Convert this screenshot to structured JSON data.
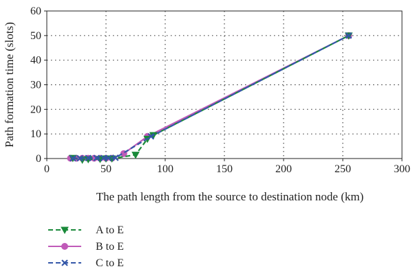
{
  "chart_data": {
    "type": "line",
    "title": "",
    "xlabel": "The path length from the source to destination node (km)",
    "ylabel": "Path formation time (slots)",
    "xlim": [
      0,
      300
    ],
    "ylim": [
      0,
      60
    ],
    "xticks": [
      0,
      50,
      100,
      150,
      200,
      250,
      300
    ],
    "yticks": [
      0,
      10,
      20,
      30,
      40,
      50,
      60
    ],
    "grid": "dotted",
    "legend_position": "bottom-left below plot",
    "series": [
      {
        "name": "A to E",
        "color": "#1a8a3a",
        "dash": "dashed",
        "marker": "triangle-down",
        "points": [
          [
            22,
            0.2
          ],
          [
            30,
            -0.5
          ],
          [
            35,
            -0.3
          ],
          [
            45,
            -0.2
          ],
          [
            50,
            0
          ],
          [
            55,
            0
          ],
          [
            75,
            1.5
          ],
          [
            85,
            8
          ],
          [
            90,
            9.5
          ],
          [
            255,
            50
          ]
        ]
      },
      {
        "name": "B to E",
        "color": "#c05ab8",
        "dash": "solid",
        "marker": "circle",
        "points": [
          [
            20,
            0.1
          ],
          [
            25,
            0.1
          ],
          [
            30,
            0.1
          ],
          [
            35,
            0.1
          ],
          [
            40,
            0.1
          ],
          [
            45,
            0.1
          ],
          [
            50,
            0.1
          ],
          [
            55,
            0.1
          ],
          [
            65,
            2
          ],
          [
            85,
            9
          ],
          [
            255,
            50
          ]
        ]
      },
      {
        "name": "C to E",
        "color": "#3457a8",
        "dash": "dashed",
        "marker": "x",
        "points": [
          [
            22,
            0.1
          ],
          [
            28,
            0.1
          ],
          [
            35,
            0.2
          ],
          [
            42,
            0.2
          ],
          [
            48,
            0.2
          ],
          [
            52,
            0.2
          ],
          [
            58,
            0.3
          ],
          [
            88,
            9
          ],
          [
            255,
            50
          ]
        ]
      }
    ]
  }
}
